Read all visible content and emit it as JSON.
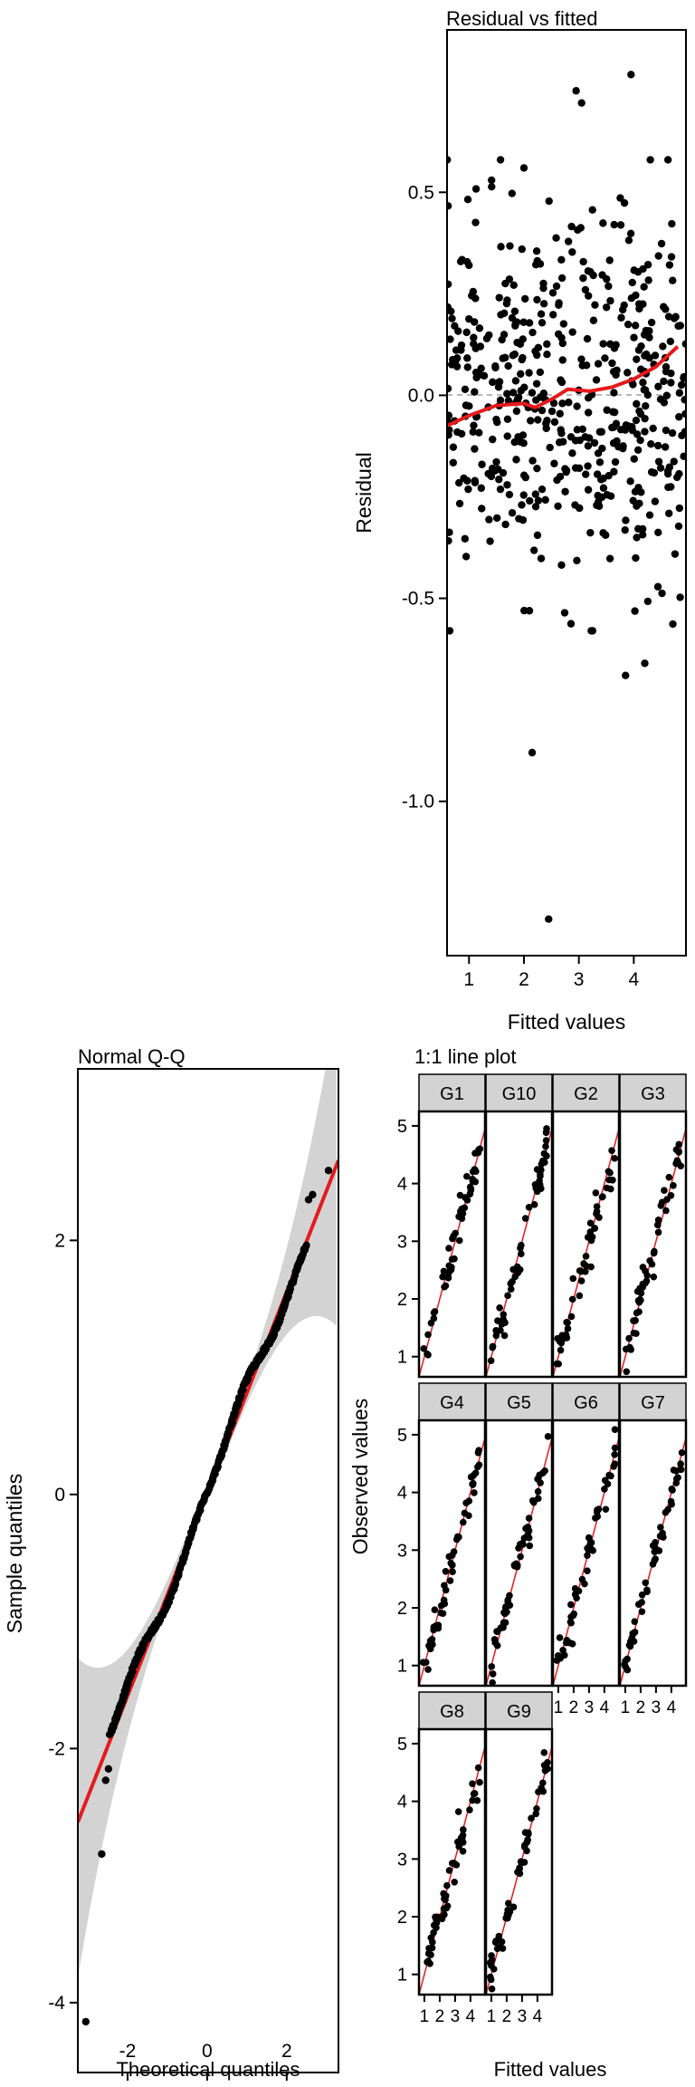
{
  "colors": {
    "points": "#000000",
    "smooth_line": "#e41a1c",
    "ref_line": "#e41a1c",
    "ci_band": "#d3d3d3",
    "strip_fill": "#d3d3d3",
    "zero_line": "#a0a0a0"
  },
  "chart_data": [
    {
      "id": "residual-vs-fitted",
      "type": "scatter",
      "title": "Residual vs fitted",
      "xlabel": "Fitted values",
      "ylabel": "Residual",
      "xlim": [
        0.6,
        4.95
      ],
      "ylim": [
        -1.38,
        0.9
      ],
      "xticks": [
        1,
        2,
        3,
        4
      ],
      "yticks": [
        0.5,
        0.0,
        -0.5,
        -1.0
      ],
      "ytick_labels": [
        "0.5",
        "0.0",
        "-0.5",
        "-1.0"
      ],
      "reference_line": {
        "y": 0,
        "style": "dashed"
      },
      "smooth": {
        "x": [
          0.6,
          1.0,
          1.5,
          2.0,
          2.2,
          2.5,
          2.8,
          3.2,
          3.6,
          4.0,
          4.4,
          4.8
        ],
        "y": [
          -0.075,
          -0.05,
          -0.025,
          -0.02,
          -0.03,
          -0.01,
          0.015,
          0.01,
          0.02,
          0.04,
          0.07,
          0.12
        ]
      },
      "outliers": [
        {
          "x": 2.45,
          "y": -1.29
        },
        {
          "x": 2.15,
          "y": -0.88
        },
        {
          "x": 3.95,
          "y": 0.79
        },
        {
          "x": 2.95,
          "y": 0.75
        },
        {
          "x": 3.05,
          "y": 0.72
        },
        {
          "x": 3.85,
          "y": -0.69
        },
        {
          "x": 4.2,
          "y": -0.66
        },
        {
          "x": 3.25,
          "y": -0.58
        },
        {
          "x": 2.0,
          "y": 0.56
        }
      ],
      "n_points": 500
    },
    {
      "id": "normal-qq",
      "type": "scatter",
      "title": "Normal Q-Q",
      "xlabel": "Theoretical quantiles",
      "ylabel": "Sample quantiles",
      "xlim": [
        -3.25,
        3.3
      ],
      "ylim": [
        -4.55,
        3.35
      ],
      "xticks": [
        -2,
        0,
        2
      ],
      "yticks": [
        2,
        0,
        -2,
        -4
      ],
      "reference_line": {
        "x": [
          -3.25,
          3.3
        ],
        "y": [
          -2.58,
          2.63
        ]
      },
      "low_tail": [
        {
          "x": -3.05,
          "y": -4.15
        },
        {
          "x": -2.65,
          "y": -2.83
        },
        {
          "x": -2.55,
          "y": -2.25
        },
        {
          "x": -2.48,
          "y": -2.16
        }
      ],
      "high_tail": [
        {
          "x": 3.05,
          "y": 2.55
        },
        {
          "x": 2.65,
          "y": 2.36
        },
        {
          "x": 2.55,
          "y": 2.32
        }
      ],
      "n_points": 500
    },
    {
      "id": "one-to-one-line-plot",
      "type": "scatter",
      "title": "1:1 line plot",
      "xlabel": "Fitted values",
      "ylabel": "Observed values",
      "xlim": [
        0.65,
        4.95
      ],
      "ylim": [
        0.65,
        5.25
      ],
      "xticks": [
        1,
        2,
        3,
        4
      ],
      "xtick_labels": [
        "1",
        "2",
        "3",
        "4"
      ],
      "yticks": [
        1,
        2,
        3,
        4,
        5
      ],
      "ytick_labels": [
        "1",
        "2",
        "3",
        "4",
        "5"
      ],
      "reference_line": "y = x",
      "panels": [
        "G1",
        "G10",
        "G2",
        "G3",
        "G4",
        "G5",
        "G6",
        "G7",
        "G8",
        "G9"
      ],
      "n_points_per_panel": 50
    }
  ]
}
